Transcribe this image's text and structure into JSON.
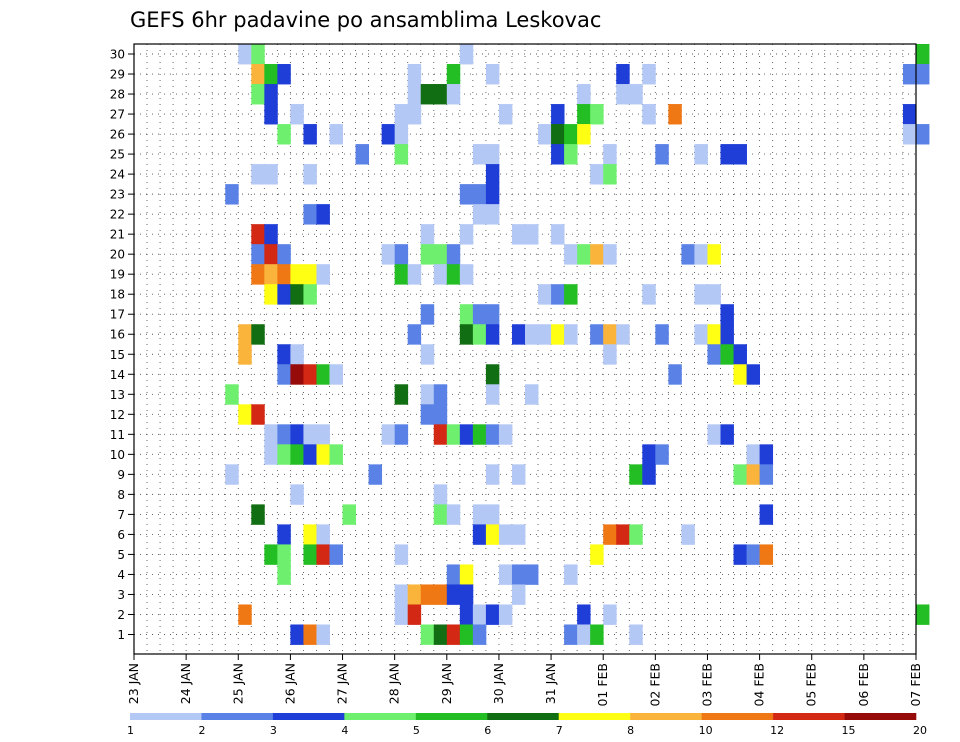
{
  "chart_data": {
    "type": "heatmap",
    "title": "GEFS 6hr padavine po ansamblima Leskovac",
    "y_ticks": [
      "1",
      "2",
      "3",
      "4",
      "5",
      "6",
      "7",
      "8",
      "9",
      "10",
      "11",
      "12",
      "13",
      "14",
      "15",
      "16",
      "17",
      "18",
      "19",
      "20",
      "21",
      "22",
      "23",
      "24",
      "25",
      "26",
      "27",
      "28",
      "29",
      "30"
    ],
    "x_ticks": [
      "23 JAN",
      "24 JAN",
      "25 JAN",
      "26 JAN",
      "27 JAN",
      "28 JAN",
      "29 JAN",
      "30 JAN",
      "31 JAN",
      "01 FEB",
      "02 FEB",
      "03 FEB",
      "04 FEB",
      "05 FEB",
      "06 FEB",
      "07 FEB"
    ],
    "steps_per_day": 4,
    "colorbar_labels": [
      "1",
      "2",
      "3",
      "4",
      "5",
      "6",
      "7",
      "8",
      "10",
      "12",
      "15",
      "20"
    ],
    "colorbar_colors": [
      "#b4c8f5",
      "#5a82e6",
      "#1f3ed8",
      "#6ef06e",
      "#23be23",
      "#126e12",
      "#ffff14",
      "#fab43c",
      "#f07814",
      "#d22814",
      "#960a0a"
    ],
    "cells": [
      [
        30,
        8,
        1
      ],
      [
        30,
        9,
        4
      ],
      [
        30,
        25,
        1
      ],
      [
        30,
        60,
        5
      ],
      [
        29,
        9,
        8
      ],
      [
        29,
        10,
        5
      ],
      [
        29,
        11,
        3
      ],
      [
        29,
        21,
        1
      ],
      [
        29,
        24,
        5
      ],
      [
        29,
        27,
        1
      ],
      [
        29,
        37,
        3
      ],
      [
        29,
        39,
        1
      ],
      [
        29,
        59,
        2
      ],
      [
        29,
        60,
        2
      ],
      [
        28,
        9,
        4
      ],
      [
        28,
        10,
        3
      ],
      [
        28,
        21,
        1
      ],
      [
        28,
        22,
        6
      ],
      [
        28,
        23,
        6
      ],
      [
        28,
        24,
        1
      ],
      [
        28,
        34,
        1
      ],
      [
        28,
        37,
        1
      ],
      [
        28,
        38,
        1
      ],
      [
        27,
        10,
        3
      ],
      [
        27,
        12,
        1
      ],
      [
        27,
        20,
        1
      ],
      [
        27,
        21,
        1
      ],
      [
        27,
        28,
        1
      ],
      [
        27,
        32,
        3
      ],
      [
        27,
        34,
        5
      ],
      [
        27,
        35,
        4
      ],
      [
        27,
        39,
        1
      ],
      [
        27,
        41,
        9
      ],
      [
        27,
        59,
        3
      ],
      [
        26,
        11,
        4
      ],
      [
        26,
        13,
        3
      ],
      [
        26,
        15,
        1
      ],
      [
        26,
        19,
        3
      ],
      [
        26,
        20,
        1
      ],
      [
        26,
        31,
        1
      ],
      [
        26,
        32,
        6
      ],
      [
        26,
        33,
        5
      ],
      [
        26,
        34,
        7
      ],
      [
        26,
        59,
        1
      ],
      [
        26,
        60,
        2
      ],
      [
        25,
        17,
        2
      ],
      [
        25,
        20,
        4
      ],
      [
        25,
        26,
        1
      ],
      [
        25,
        27,
        1
      ],
      [
        25,
        32,
        3
      ],
      [
        25,
        33,
        4
      ],
      [
        25,
        36,
        1
      ],
      [
        25,
        40,
        2
      ],
      [
        25,
        43,
        1
      ],
      [
        25,
        45,
        3
      ],
      [
        25,
        46,
        3
      ],
      [
        24,
        9,
        1
      ],
      [
        24,
        10,
        1
      ],
      [
        24,
        13,
        1
      ],
      [
        24,
        27,
        3
      ],
      [
        24,
        35,
        1
      ],
      [
        24,
        36,
        4
      ],
      [
        23,
        7,
        2
      ],
      [
        23,
        25,
        2
      ],
      [
        23,
        26,
        2
      ],
      [
        23,
        27,
        3
      ],
      [
        22,
        13,
        2
      ],
      [
        22,
        14,
        3
      ],
      [
        22,
        26,
        1
      ],
      [
        22,
        27,
        1
      ],
      [
        21,
        9,
        10
      ],
      [
        21,
        10,
        3
      ],
      [
        21,
        22,
        1
      ],
      [
        21,
        25,
        1
      ],
      [
        21,
        29,
        1
      ],
      [
        21,
        30,
        1
      ],
      [
        21,
        32,
        1
      ],
      [
        20,
        9,
        2
      ],
      [
        20,
        10,
        10
      ],
      [
        20,
        11,
        2
      ],
      [
        20,
        19,
        1
      ],
      [
        20,
        20,
        2
      ],
      [
        20,
        22,
        4
      ],
      [
        20,
        23,
        4
      ],
      [
        20,
        24,
        2
      ],
      [
        20,
        33,
        1
      ],
      [
        20,
        34,
        4
      ],
      [
        20,
        35,
        8
      ],
      [
        20,
        36,
        1
      ],
      [
        20,
        42,
        2
      ],
      [
        20,
        43,
        1
      ],
      [
        20,
        44,
        7
      ],
      [
        19,
        9,
        9
      ],
      [
        19,
        10,
        8
      ],
      [
        19,
        11,
        9
      ],
      [
        19,
        12,
        7
      ],
      [
        19,
        13,
        7
      ],
      [
        19,
        14,
        1
      ],
      [
        19,
        20,
        5
      ],
      [
        19,
        21,
        1
      ],
      [
        19,
        23,
        1
      ],
      [
        19,
        24,
        5
      ],
      [
        19,
        25,
        1
      ],
      [
        18,
        10,
        7
      ],
      [
        18,
        11,
        3
      ],
      [
        18,
        12,
        6
      ],
      [
        18,
        13,
        4
      ],
      [
        18,
        31,
        1
      ],
      [
        18,
        32,
        2
      ],
      [
        18,
        33,
        5
      ],
      [
        18,
        39,
        1
      ],
      [
        18,
        43,
        1
      ],
      [
        18,
        44,
        1
      ],
      [
        17,
        22,
        2
      ],
      [
        17,
        25,
        4
      ],
      [
        17,
        26,
        2
      ],
      [
        17,
        27,
        2
      ],
      [
        17,
        45,
        3
      ],
      [
        16,
        8,
        8
      ],
      [
        16,
        9,
        6
      ],
      [
        16,
        21,
        2
      ],
      [
        16,
        25,
        6
      ],
      [
        16,
        26,
        4
      ],
      [
        16,
        27,
        3
      ],
      [
        16,
        29,
        3
      ],
      [
        16,
        30,
        1
      ],
      [
        16,
        31,
        1
      ],
      [
        16,
        32,
        7
      ],
      [
        16,
        33,
        1
      ],
      [
        16,
        35,
        2
      ],
      [
        16,
        36,
        8
      ],
      [
        16,
        37,
        1
      ],
      [
        16,
        40,
        2
      ],
      [
        16,
        43,
        1
      ],
      [
        16,
        44,
        7
      ],
      [
        16,
        45,
        3
      ],
      [
        15,
        8,
        8
      ],
      [
        15,
        11,
        3
      ],
      [
        15,
        12,
        1
      ],
      [
        15,
        22,
        1
      ],
      [
        15,
        36,
        1
      ],
      [
        15,
        44,
        2
      ],
      [
        15,
        45,
        5
      ],
      [
        15,
        46,
        3
      ],
      [
        14,
        11,
        2
      ],
      [
        14,
        12,
        11
      ],
      [
        14,
        13,
        10
      ],
      [
        14,
        14,
        5
      ],
      [
        14,
        15,
        1
      ],
      [
        14,
        27,
        6
      ],
      [
        14,
        41,
        2
      ],
      [
        14,
        46,
        7
      ],
      [
        14,
        47,
        3
      ],
      [
        13,
        7,
        4
      ],
      [
        13,
        20,
        6
      ],
      [
        13,
        22,
        1
      ],
      [
        13,
        23,
        2
      ],
      [
        13,
        27,
        1
      ],
      [
        13,
        30,
        1
      ],
      [
        12,
        8,
        7
      ],
      [
        12,
        9,
        10
      ],
      [
        12,
        22,
        2
      ],
      [
        12,
        23,
        2
      ],
      [
        11,
        10,
        1
      ],
      [
        11,
        11,
        2
      ],
      [
        11,
        12,
        3
      ],
      [
        11,
        13,
        1
      ],
      [
        11,
        14,
        1
      ],
      [
        11,
        19,
        1
      ],
      [
        11,
        20,
        2
      ],
      [
        11,
        23,
        10
      ],
      [
        11,
        24,
        4
      ],
      [
        11,
        25,
        3
      ],
      [
        11,
        26,
        5
      ],
      [
        11,
        27,
        2
      ],
      [
        11,
        28,
        1
      ],
      [
        11,
        44,
        1
      ],
      [
        11,
        45,
        3
      ],
      [
        10,
        10,
        1
      ],
      [
        10,
        11,
        4
      ],
      [
        10,
        12,
        5
      ],
      [
        10,
        13,
        3
      ],
      [
        10,
        14,
        7
      ],
      [
        10,
        15,
        4
      ],
      [
        10,
        39,
        3
      ],
      [
        10,
        40,
        2
      ],
      [
        10,
        47,
        1
      ],
      [
        10,
        48,
        3
      ],
      [
        9,
        7,
        1
      ],
      [
        9,
        18,
        2
      ],
      [
        9,
        27,
        1
      ],
      [
        9,
        29,
        1
      ],
      [
        9,
        38,
        5
      ],
      [
        9,
        39,
        3
      ],
      [
        9,
        46,
        4
      ],
      [
        9,
        47,
        8
      ],
      [
        9,
        48,
        2
      ],
      [
        8,
        12,
        1
      ],
      [
        8,
        23,
        1
      ],
      [
        7,
        9,
        6
      ],
      [
        7,
        16,
        4
      ],
      [
        7,
        23,
        4
      ],
      [
        7,
        24,
        1
      ],
      [
        7,
        26,
        1
      ],
      [
        7,
        27,
        1
      ],
      [
        7,
        48,
        3
      ],
      [
        6,
        11,
        3
      ],
      [
        6,
        13,
        7
      ],
      [
        6,
        14,
        1
      ],
      [
        6,
        26,
        3
      ],
      [
        6,
        27,
        7
      ],
      [
        6,
        28,
        1
      ],
      [
        6,
        29,
        1
      ],
      [
        6,
        36,
        9
      ],
      [
        6,
        37,
        10
      ],
      [
        6,
        38,
        4
      ],
      [
        6,
        42,
        1
      ],
      [
        5,
        10,
        5
      ],
      [
        5,
        11,
        4
      ],
      [
        5,
        13,
        5
      ],
      [
        5,
        14,
        10
      ],
      [
        5,
        15,
        2
      ],
      [
        5,
        20,
        1
      ],
      [
        5,
        35,
        7
      ],
      [
        5,
        46,
        3
      ],
      [
        5,
        47,
        2
      ],
      [
        5,
        48,
        9
      ],
      [
        4,
        11,
        4
      ],
      [
        4,
        24,
        2
      ],
      [
        4,
        25,
        7
      ],
      [
        4,
        28,
        1
      ],
      [
        4,
        29,
        2
      ],
      [
        4,
        30,
        2
      ],
      [
        4,
        33,
        1
      ],
      [
        3,
        20,
        1
      ],
      [
        3,
        21,
        8
      ],
      [
        3,
        22,
        9
      ],
      [
        3,
        23,
        9
      ],
      [
        3,
        24,
        3
      ],
      [
        3,
        25,
        3
      ],
      [
        3,
        29,
        1
      ],
      [
        2,
        8,
        9
      ],
      [
        2,
        20,
        1
      ],
      [
        2,
        21,
        10
      ],
      [
        2,
        25,
        3
      ],
      [
        2,
        26,
        1
      ],
      [
        2,
        27,
        3
      ],
      [
        2,
        28,
        1
      ],
      [
        2,
        34,
        3
      ],
      [
        2,
        36,
        1
      ],
      [
        2,
        60,
        5
      ],
      [
        1,
        12,
        3
      ],
      [
        1,
        13,
        9
      ],
      [
        1,
        14,
        1
      ],
      [
        1,
        22,
        4
      ],
      [
        1,
        23,
        6
      ],
      [
        1,
        24,
        10
      ],
      [
        1,
        25,
        5
      ],
      [
        1,
        26,
        2
      ],
      [
        1,
        33,
        2
      ],
      [
        1,
        34,
        1
      ],
      [
        1,
        35,
        5
      ],
      [
        1,
        38,
        1
      ]
    ]
  }
}
